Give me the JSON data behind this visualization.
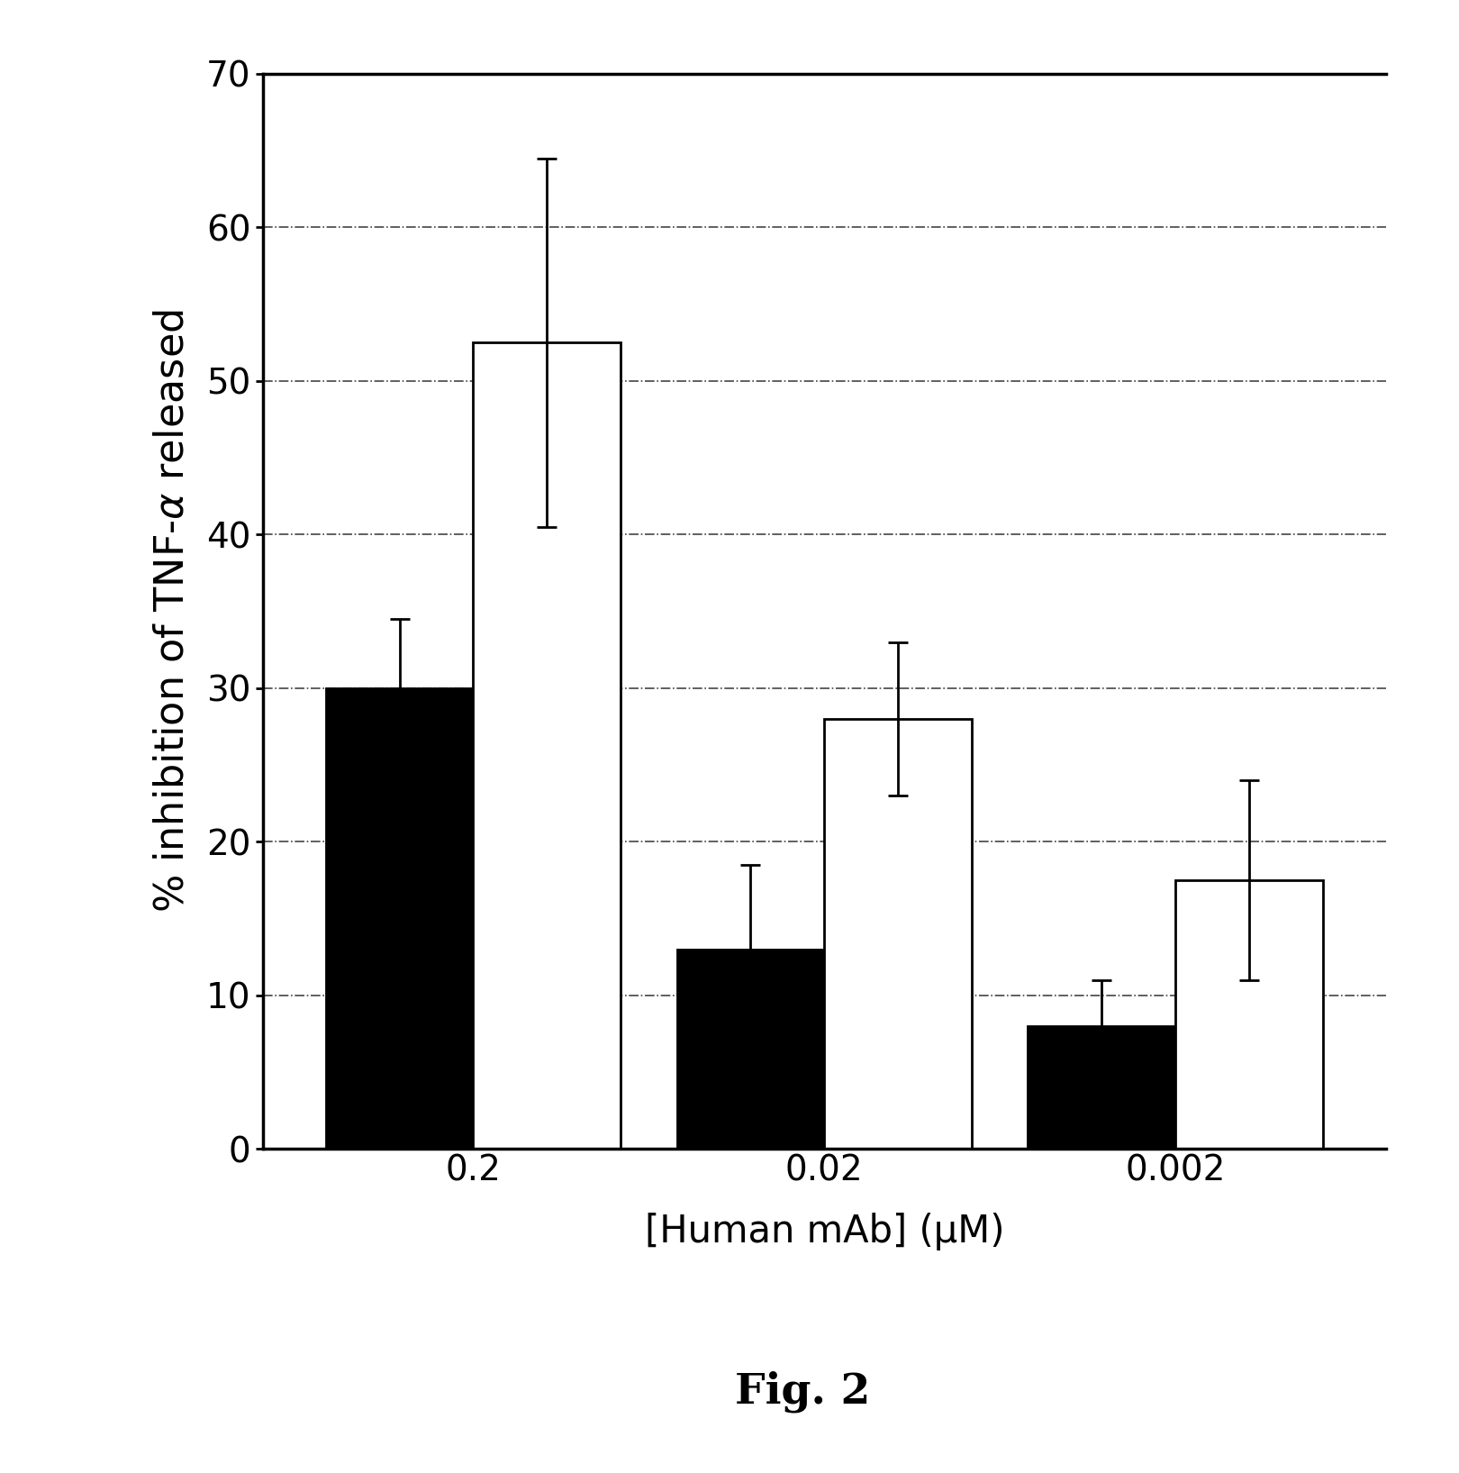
{
  "categories": [
    "0.2",
    "0.02",
    "0.002"
  ],
  "black_values": [
    30.0,
    13.0,
    8.0
  ],
  "white_values": [
    52.5,
    28.0,
    17.5
  ],
  "black_errors": [
    4.5,
    5.5,
    3.0
  ],
  "white_errors": [
    12.0,
    5.0,
    6.5
  ],
  "black_color": "#000000",
  "white_color": "#ffffff",
  "bar_edge_color": "#000000",
  "bar_width": 0.42,
  "ylim": [
    0,
    70
  ],
  "yticks": [
    0,
    10,
    20,
    30,
    40,
    50,
    60,
    70
  ],
  "grid_yticks": [
    10,
    20,
    30,
    40,
    50,
    60
  ],
  "ylabel_parts": [
    "% inhibition of TNF-",
    "α",
    " released"
  ],
  "xlabel": "[Human mAb] (μM)",
  "caption": "Fig. 2",
  "grid_linestyle": "-.",
  "grid_color": "#444444",
  "grid_linewidth": 1.2,
  "ylabel_fontsize": 32,
  "xlabel_fontsize": 30,
  "tick_fontsize": 28,
  "caption_fontsize": 34,
  "bar_linewidth": 2.0,
  "error_linewidth": 2.0,
  "error_capsize": 8,
  "background_color": "#ffffff",
  "spine_linewidth": 2.5
}
